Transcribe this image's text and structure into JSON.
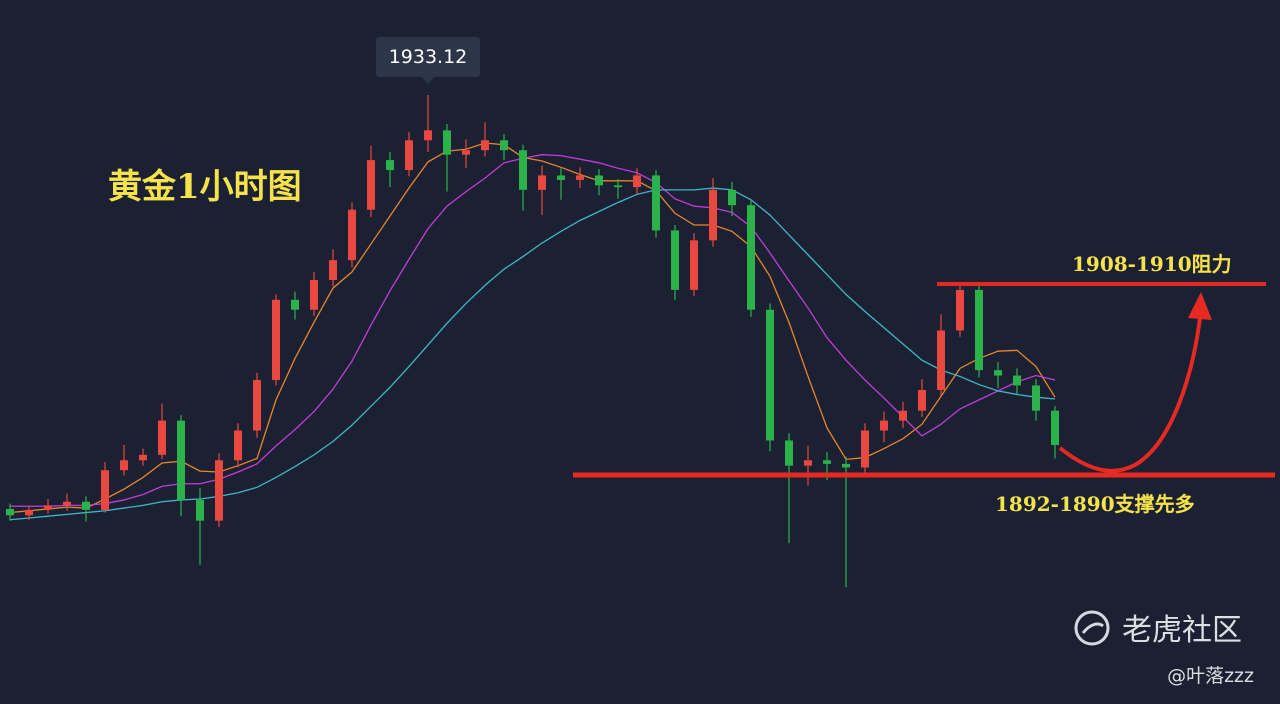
{
  "chart_data": {
    "type": "candlestick",
    "title": "黄金1小时图",
    "ylim": [
      1870,
      1940
    ],
    "up_color": "#e8483f",
    "down_color": "#2bb24a",
    "open": [
      1887.2,
      1886.5,
      1887.1,
      1887.6,
      1888.0,
      1887.1,
      1891.5,
      1892.6,
      1893.2,
      1897.0,
      1888.2,
      1885.9,
      1892.6,
      1895.9,
      1901.5,
      1910.4,
      1909.3,
      1912.6,
      1914.8,
      1920.4,
      1925.9,
      1924.8,
      1928.1,
      1929.2,
      1926.5,
      1927.0,
      1928.1,
      1927.0,
      1922.6,
      1924.2,
      1923.7,
      1924.2,
      1923.1,
      1922.9,
      1924.2,
      1918.1,
      1911.5,
      1917.0,
      1922.6,
      1920.9,
      1909.3,
      1894.8,
      1892.0,
      1892.6,
      1892.2,
      1891.8,
      1895.9,
      1897.0,
      1898.1,
      1900.4,
      1907.0,
      1911.5,
      1902.6,
      1902.0,
      1900.9,
      1898.1
    ],
    "high": [
      1887.8,
      1887.6,
      1888.3,
      1888.9,
      1888.6,
      1892.4,
      1894.3,
      1893.9,
      1898.9,
      1897.6,
      1889.5,
      1893.4,
      1896.7,
      1902.3,
      1911.0,
      1911.3,
      1913.5,
      1916.0,
      1921.2,
      1927.5,
      1926.8,
      1929.0,
      1933.12,
      1929.9,
      1928.2,
      1930.1,
      1928.8,
      1927.6,
      1925.3,
      1925.0,
      1925.1,
      1924.9,
      1923.8,
      1925.0,
      1924.8,
      1918.7,
      1917.8,
      1923.9,
      1923.5,
      1921.6,
      1910.0,
      1895.6,
      1894.2,
      1893.5,
      1893.0,
      1896.7,
      1898.0,
      1899.1,
      1901.6,
      1908.8,
      1912.2,
      1912.2,
      1903.5,
      1902.8,
      1901.6,
      1898.6
    ],
    "low": [
      1885.9,
      1886.0,
      1886.7,
      1887.0,
      1885.8,
      1886.8,
      1890.9,
      1892.0,
      1892.7,
      1886.4,
      1881.0,
      1885.2,
      1891.8,
      1895.1,
      1900.9,
      1908.2,
      1908.6,
      1911.9,
      1914.0,
      1919.6,
      1922.9,
      1924.1,
      1926.8,
      1922.4,
      1925.0,
      1926.3,
      1925.9,
      1920.3,
      1919.8,
      1921.5,
      1922.8,
      1922.0,
      1921.6,
      1922.1,
      1917.3,
      1910.4,
      1910.8,
      1916.3,
      1919.7,
      1908.5,
      1893.6,
      1883.4,
      1889.8,
      1890.4,
      1878.5,
      1890.9,
      1894.6,
      1896.2,
      1897.4,
      1899.8,
      1906.3,
      1901.8,
      1900.6,
      1899.9,
      1897.0,
      1892.8
    ],
    "close": [
      1886.5,
      1887.1,
      1887.6,
      1888.0,
      1887.1,
      1891.5,
      1892.6,
      1893.2,
      1897.0,
      1888.2,
      1885.9,
      1892.6,
      1895.9,
      1901.5,
      1910.4,
      1909.3,
      1912.6,
      1914.8,
      1920.4,
      1925.9,
      1924.8,
      1928.1,
      1929.2,
      1926.5,
      1927.0,
      1928.1,
      1927.0,
      1922.6,
      1924.2,
      1923.7,
      1924.2,
      1923.1,
      1922.9,
      1924.2,
      1918.1,
      1911.5,
      1917.0,
      1922.6,
      1920.9,
      1909.3,
      1894.8,
      1892.0,
      1892.6,
      1892.2,
      1891.8,
      1895.9,
      1897.0,
      1898.1,
      1900.4,
      1907.0,
      1911.5,
      1902.6,
      1902.0,
      1900.9,
      1898.1,
      1894.3
    ],
    "moving_averages": [
      {
        "color": "#e8862a",
        "values": [
          1886.8,
          1887.0,
          1887.2,
          1887.4,
          1887.3,
          1888.3,
          1889.4,
          1890.7,
          1892.3,
          1892.5,
          1891.4,
          1891.3,
          1892.0,
          1892.8,
          1899.3,
          1903.9,
          1907.9,
          1911.7,
          1913.5,
          1916.6,
          1919.7,
          1922.8,
          1925.7,
          1926.9,
          1927.1,
          1927.8,
          1927.6,
          1926.2,
          1925.8,
          1925.1,
          1924.3,
          1923.6,
          1923.6,
          1923.6,
          1922.5,
          1920.0,
          1918.7,
          1918.7,
          1918.0,
          1916.3,
          1913.0,
          1907.9,
          1901.9,
          1896.2,
          1892.7,
          1892.9,
          1893.9,
          1895.0,
          1896.6,
          1899.7,
          1902.8,
          1903.9,
          1904.7,
          1904.8,
          1903.0,
          1899.6
        ]
      },
      {
        "color": "#c23dd6",
        "values": [
          1887.5,
          1887.5,
          1887.5,
          1887.6,
          1887.6,
          1887.8,
          1888.2,
          1888.8,
          1889.7,
          1890.0,
          1890.0,
          1890.5,
          1891.3,
          1892.2,
          1894.2,
          1896.0,
          1898.0,
          1900.5,
          1903.6,
          1907.6,
          1911.4,
          1914.9,
          1918.3,
          1920.8,
          1922.4,
          1923.9,
          1925.6,
          1926.1,
          1926.5,
          1926.4,
          1926.0,
          1925.6,
          1925.0,
          1924.5,
          1923.4,
          1921.6,
          1920.8,
          1920.6,
          1920.1,
          1918.5,
          1915.6,
          1912.5,
          1909.5,
          1906.2,
          1903.7,
          1901.5,
          1899.5,
          1897.4,
          1895.3,
          1896.6,
          1898.3,
          1899.3,
          1900.3,
          1901.3,
          1902.0,
          1901.5
        ]
      },
      {
        "color": "#3fb7c4",
        "values": [
          1886.0,
          1886.2,
          1886.4,
          1886.6,
          1886.8,
          1887.0,
          1887.3,
          1887.6,
          1888.0,
          1888.2,
          1888.3,
          1888.6,
          1889.0,
          1889.6,
          1890.7,
          1891.9,
          1893.2,
          1894.7,
          1896.5,
          1898.6,
          1900.7,
          1903.0,
          1905.4,
          1907.8,
          1910.0,
          1912.0,
          1913.8,
          1915.2,
          1916.7,
          1918.0,
          1919.2,
          1920.2,
          1921.2,
          1922.1,
          1922.6,
          1922.6,
          1922.6,
          1922.8,
          1922.6,
          1921.5,
          1919.8,
          1917.6,
          1915.4,
          1913.2,
          1911.0,
          1909.1,
          1907.3,
          1905.5,
          1903.7,
          1902.6,
          1901.9,
          1901.0,
          1900.3,
          1899.9,
          1899.6,
          1899.4
        ]
      }
    ],
    "annotations": {
      "resistance": "1908-1910阻力",
      "support": "1892-1890支撑先多"
    },
    "watermark": "老虎社区",
    "author": "@叶落zzz"
  }
}
